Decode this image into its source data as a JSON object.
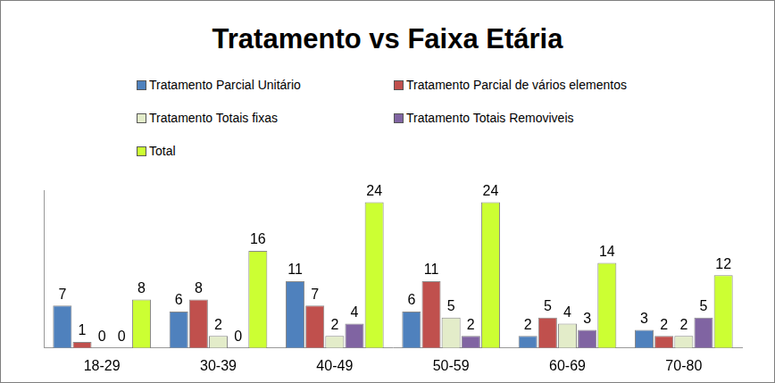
{
  "chart_data": {
    "type": "bar",
    "title": "Tratamento vs Faixa Etária",
    "categories": [
      "18-29",
      "30-39",
      "40-49",
      "50-59",
      "60-69",
      "70-80"
    ],
    "series": [
      {
        "name": "Tratamento Parcial Unitário",
        "color": "#4f81bd",
        "values": [
          7,
          6,
          11,
          6,
          2,
          3
        ]
      },
      {
        "name": "Tratamento Parcial de vários elementos",
        "color": "#c0504d",
        "values": [
          1,
          8,
          7,
          11,
          5,
          2
        ]
      },
      {
        "name": "Tratamento Totais fixas",
        "color": "#e3ecc9",
        "values": [
          0,
          2,
          2,
          5,
          4,
          2
        ]
      },
      {
        "name": "Tratamento Totais Removiveis",
        "color": "#8064a2",
        "values": [
          0,
          0,
          4,
          2,
          3,
          5
        ]
      },
      {
        "name": "Total",
        "color": "#ccff33",
        "values": [
          8,
          16,
          24,
          24,
          14,
          12
        ]
      }
    ],
    "ylim": [
      0,
      26
    ],
    "legend": "top",
    "data_labels": true,
    "tick_labels": "x",
    "grid": false
  }
}
